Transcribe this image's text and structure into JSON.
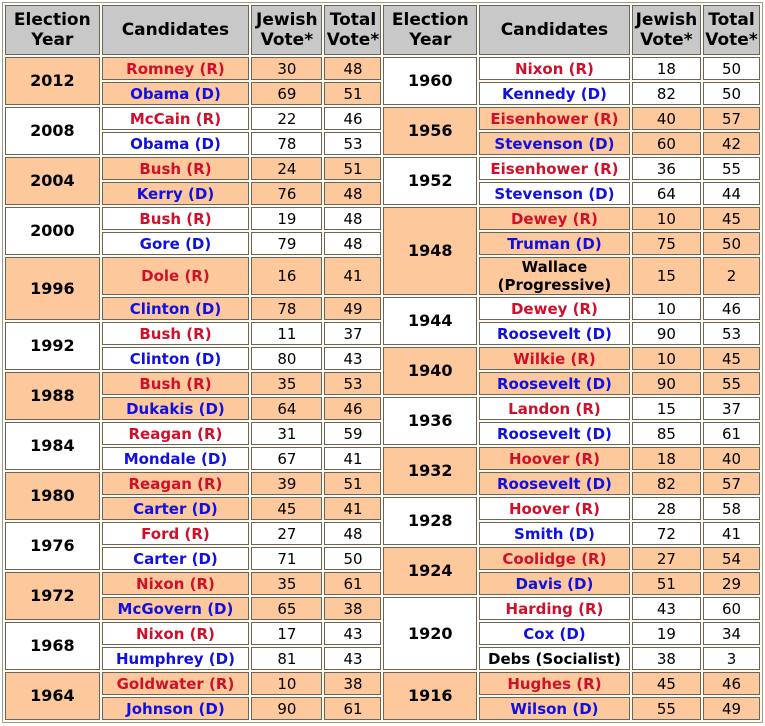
{
  "table": {
    "columns": [
      "Election\nYear",
      "Candidates",
      "Jewish\nVote*",
      "Total\nVote*"
    ],
    "left": [
      {
        "year": "2012",
        "background": "#fdc89c",
        "candidates": [
          {
            "name": "Romney (R)",
            "color": "#d0102a",
            "jewish": 30,
            "total": 48
          },
          {
            "name": "Obama (D)",
            "color": "#1010e0",
            "jewish": 69,
            "total": 51
          }
        ]
      },
      {
        "year": "2008",
        "background": "#ffffff",
        "candidates": [
          {
            "name": "McCain (R)",
            "color": "#d0102a",
            "jewish": 22,
            "total": 46
          },
          {
            "name": "Obama (D)",
            "color": "#1010e0",
            "jewish": 78,
            "total": 53
          }
        ]
      },
      {
        "year": "2004",
        "background": "#fdc89c",
        "candidates": [
          {
            "name": "Bush (R)",
            "color": "#d0102a",
            "jewish": 24,
            "total": 51
          },
          {
            "name": "Kerry (D)",
            "color": "#1010e0",
            "jewish": 76,
            "total": 48
          }
        ]
      },
      {
        "year": "2000",
        "background": "#ffffff",
        "candidates": [
          {
            "name": "Bush (R)",
            "color": "#d0102a",
            "jewish": 19,
            "total": 48
          },
          {
            "name": "Gore (D)",
            "color": "#1010e0",
            "jewish": 79,
            "total": 48
          }
        ]
      },
      {
        "year": "1996",
        "background": "#fdc89c",
        "candidates": [
          {
            "name": "Dole (R)",
            "color": "#d0102a",
            "jewish": 16,
            "total": 41
          },
          {
            "name": "Clinton (D)",
            "color": "#1010e0",
            "jewish": 78,
            "total": 49
          }
        ]
      },
      {
        "year": "1992",
        "background": "#ffffff",
        "candidates": [
          {
            "name": "Bush (R)",
            "color": "#d0102a",
            "jewish": 11,
            "total": 37
          },
          {
            "name": "Clinton (D)",
            "color": "#1010e0",
            "jewish": 80,
            "total": 43
          }
        ]
      },
      {
        "year": "1988",
        "background": "#fdc89c",
        "candidates": [
          {
            "name": "Bush (R)",
            "color": "#d0102a",
            "jewish": 35,
            "total": 53
          },
          {
            "name": "Dukakis (D)",
            "color": "#1010e0",
            "jewish": 64,
            "total": 46
          }
        ]
      },
      {
        "year": "1984",
        "background": "#ffffff",
        "candidates": [
          {
            "name": "Reagan (R)",
            "color": "#d0102a",
            "jewish": 31,
            "total": 59
          },
          {
            "name": "Mondale (D)",
            "color": "#1010e0",
            "jewish": 67,
            "total": 41
          }
        ]
      },
      {
        "year": "1980",
        "background": "#fdc89c",
        "candidates": [
          {
            "name": "Reagan (R)",
            "color": "#d0102a",
            "jewish": 39,
            "total": 51
          },
          {
            "name": "Carter (D)",
            "color": "#1010e0",
            "jewish": 45,
            "total": 41
          }
        ]
      },
      {
        "year": "1976",
        "background": "#ffffff",
        "candidates": [
          {
            "name": "Ford (R)",
            "color": "#d0102a",
            "jewish": 27,
            "total": 48
          },
          {
            "name": "Carter (D)",
            "color": "#1010e0",
            "jewish": 71,
            "total": 50
          }
        ]
      },
      {
        "year": "1972",
        "background": "#fdc89c",
        "candidates": [
          {
            "name": "Nixon (R)",
            "color": "#d0102a",
            "jewish": 35,
            "total": 61
          },
          {
            "name": "McGovern (D)",
            "color": "#1010e0",
            "jewish": 65,
            "total": 38
          }
        ]
      },
      {
        "year": "1968",
        "background": "#ffffff",
        "candidates": [
          {
            "name": "Nixon (R)",
            "color": "#d0102a",
            "jewish": 17,
            "total": 43
          },
          {
            "name": "Humphrey (D)",
            "color": "#1010e0",
            "jewish": 81,
            "total": 43
          }
        ]
      },
      {
        "year": "1964",
        "background": "#fdc89c",
        "candidates": [
          {
            "name": "Goldwater (R)",
            "color": "#d0102a",
            "jewish": 10,
            "total": 38
          },
          {
            "name": "Johnson (D)",
            "color": "#1010e0",
            "jewish": 90,
            "total": 61
          }
        ]
      }
    ],
    "right": [
      {
        "year": "1960",
        "background": "#ffffff",
        "candidates": [
          {
            "name": "Nixon (R)",
            "color": "#d0102a",
            "jewish": 18,
            "total": 50
          },
          {
            "name": "Kennedy (D)",
            "color": "#1010e0",
            "jewish": 82,
            "total": 50
          }
        ]
      },
      {
        "year": "1956",
        "background": "#fdc89c",
        "candidates": [
          {
            "name": "Eisenhower (R)",
            "color": "#d0102a",
            "jewish": 40,
            "total": 57
          },
          {
            "name": "Stevenson (D)",
            "color": "#1010e0",
            "jewish": 60,
            "total": 42
          }
        ]
      },
      {
        "year": "1952",
        "background": "#ffffff",
        "candidates": [
          {
            "name": "Eisenhower (R)",
            "color": "#d0102a",
            "jewish": 36,
            "total": 55
          },
          {
            "name": "Stevenson (D)",
            "color": "#1010e0",
            "jewish": 64,
            "total": 44
          }
        ]
      },
      {
        "year": "1948",
        "background": "#fdc89c",
        "candidates": [
          {
            "name": "Dewey (R)",
            "color": "#d0102a",
            "jewish": 10,
            "total": 45
          },
          {
            "name": "Truman (D)",
            "color": "#1010e0",
            "jewish": 75,
            "total": 50
          },
          {
            "name": "Wallace\n(Progressive)",
            "color": "#000000",
            "jewish": 15,
            "total": 2
          }
        ]
      },
      {
        "year": "1944",
        "background": "#ffffff",
        "candidates": [
          {
            "name": "Dewey (R)",
            "color": "#d0102a",
            "jewish": 10,
            "total": 46
          },
          {
            "name": "Roosevelt (D)",
            "color": "#1010e0",
            "jewish": 90,
            "total": 53
          }
        ]
      },
      {
        "year": "1940",
        "background": "#fdc89c",
        "candidates": [
          {
            "name": "Wilkie (R)",
            "color": "#d0102a",
            "jewish": 10,
            "total": 45
          },
          {
            "name": "Roosevelt (D)",
            "color": "#1010e0",
            "jewish": 90,
            "total": 55
          }
        ]
      },
      {
        "year": "1936",
        "background": "#ffffff",
        "candidates": [
          {
            "name": "Landon (R)",
            "color": "#d0102a",
            "jewish": 15,
            "total": 37
          },
          {
            "name": "Roosevelt (D)",
            "color": "#1010e0",
            "jewish": 85,
            "total": 61
          }
        ]
      },
      {
        "year": "1932",
        "background": "#fdc89c",
        "candidates": [
          {
            "name": "Hoover (R)",
            "color": "#d0102a",
            "jewish": 18,
            "total": 40
          },
          {
            "name": "Roosevelt (D)",
            "color": "#1010e0",
            "jewish": 82,
            "total": 57
          }
        ]
      },
      {
        "year": "1928",
        "background": "#ffffff",
        "candidates": [
          {
            "name": "Hoover (R)",
            "color": "#d0102a",
            "jewish": 28,
            "total": 58
          },
          {
            "name": "Smith (D)",
            "color": "#1010e0",
            "jewish": 72,
            "total": 41
          }
        ]
      },
      {
        "year": "1924",
        "background": "#fdc89c",
        "candidates": [
          {
            "name": "Coolidge (R)",
            "color": "#d0102a",
            "jewish": 27,
            "total": 54
          },
          {
            "name": "Davis (D)",
            "color": "#1010e0",
            "jewish": 51,
            "total": 29
          }
        ]
      },
      {
        "year": "1920",
        "background": "#ffffff",
        "candidates": [
          {
            "name": "Harding (R)",
            "color": "#d0102a",
            "jewish": 43,
            "total": 60
          },
          {
            "name": "Cox (D)",
            "color": "#1010e0",
            "jewish": 19,
            "total": 34
          },
          {
            "name": "Debs (Socialist)",
            "color": "#000000",
            "jewish": 38,
            "total": 3
          }
        ]
      },
      {
        "year": "1916",
        "background": "#fdc89c",
        "candidates": [
          {
            "name": "Hughes (R)",
            "color": "#d0102a",
            "jewish": 45,
            "total": 46
          },
          {
            "name": "Wilson (D)",
            "color": "#1010e0",
            "jewish": 55,
            "total": 49
          }
        ]
      }
    ]
  }
}
